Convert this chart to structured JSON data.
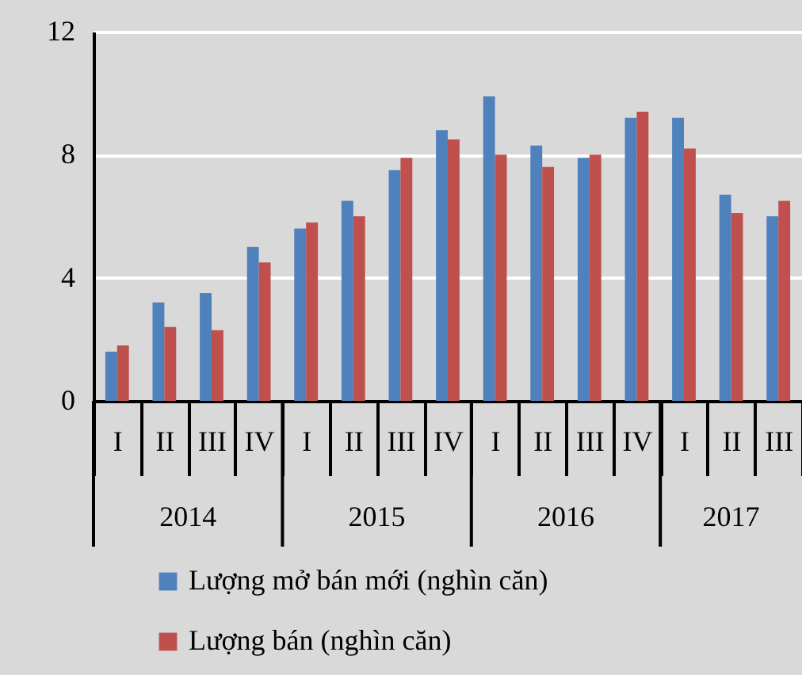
{
  "chart_data": {
    "type": "bar",
    "categories": [
      "I",
      "II",
      "III",
      "IV",
      "I",
      "II",
      "III",
      "IV",
      "I",
      "II",
      "III",
      "IV",
      "I",
      "II",
      "III"
    ],
    "annotations": [
      "2014",
      "2015",
      "2016",
      "2017"
    ],
    "series": [
      {
        "name": "Lượng mở bán mới (nghìn căn)",
        "color": "#4f81bd",
        "values": [
          1.6,
          3.2,
          3.5,
          5.0,
          5.6,
          6.5,
          7.5,
          8.8,
          9.9,
          8.3,
          7.9,
          9.2,
          9.2,
          6.7,
          6.0
        ]
      },
      {
        "name": "Lượng bán (nghìn căn)",
        "color": "#c0504d",
        "values": [
          1.8,
          2.4,
          2.3,
          4.5,
          5.8,
          6.0,
          7.9,
          8.5,
          8.0,
          7.6,
          8.0,
          9.4,
          8.2,
          6.1,
          6.5
        ]
      }
    ],
    "ylim": [
      0,
      12
    ],
    "yticks": [
      0,
      4,
      8,
      12
    ],
    "grid": "y",
    "legend": "bottom"
  }
}
